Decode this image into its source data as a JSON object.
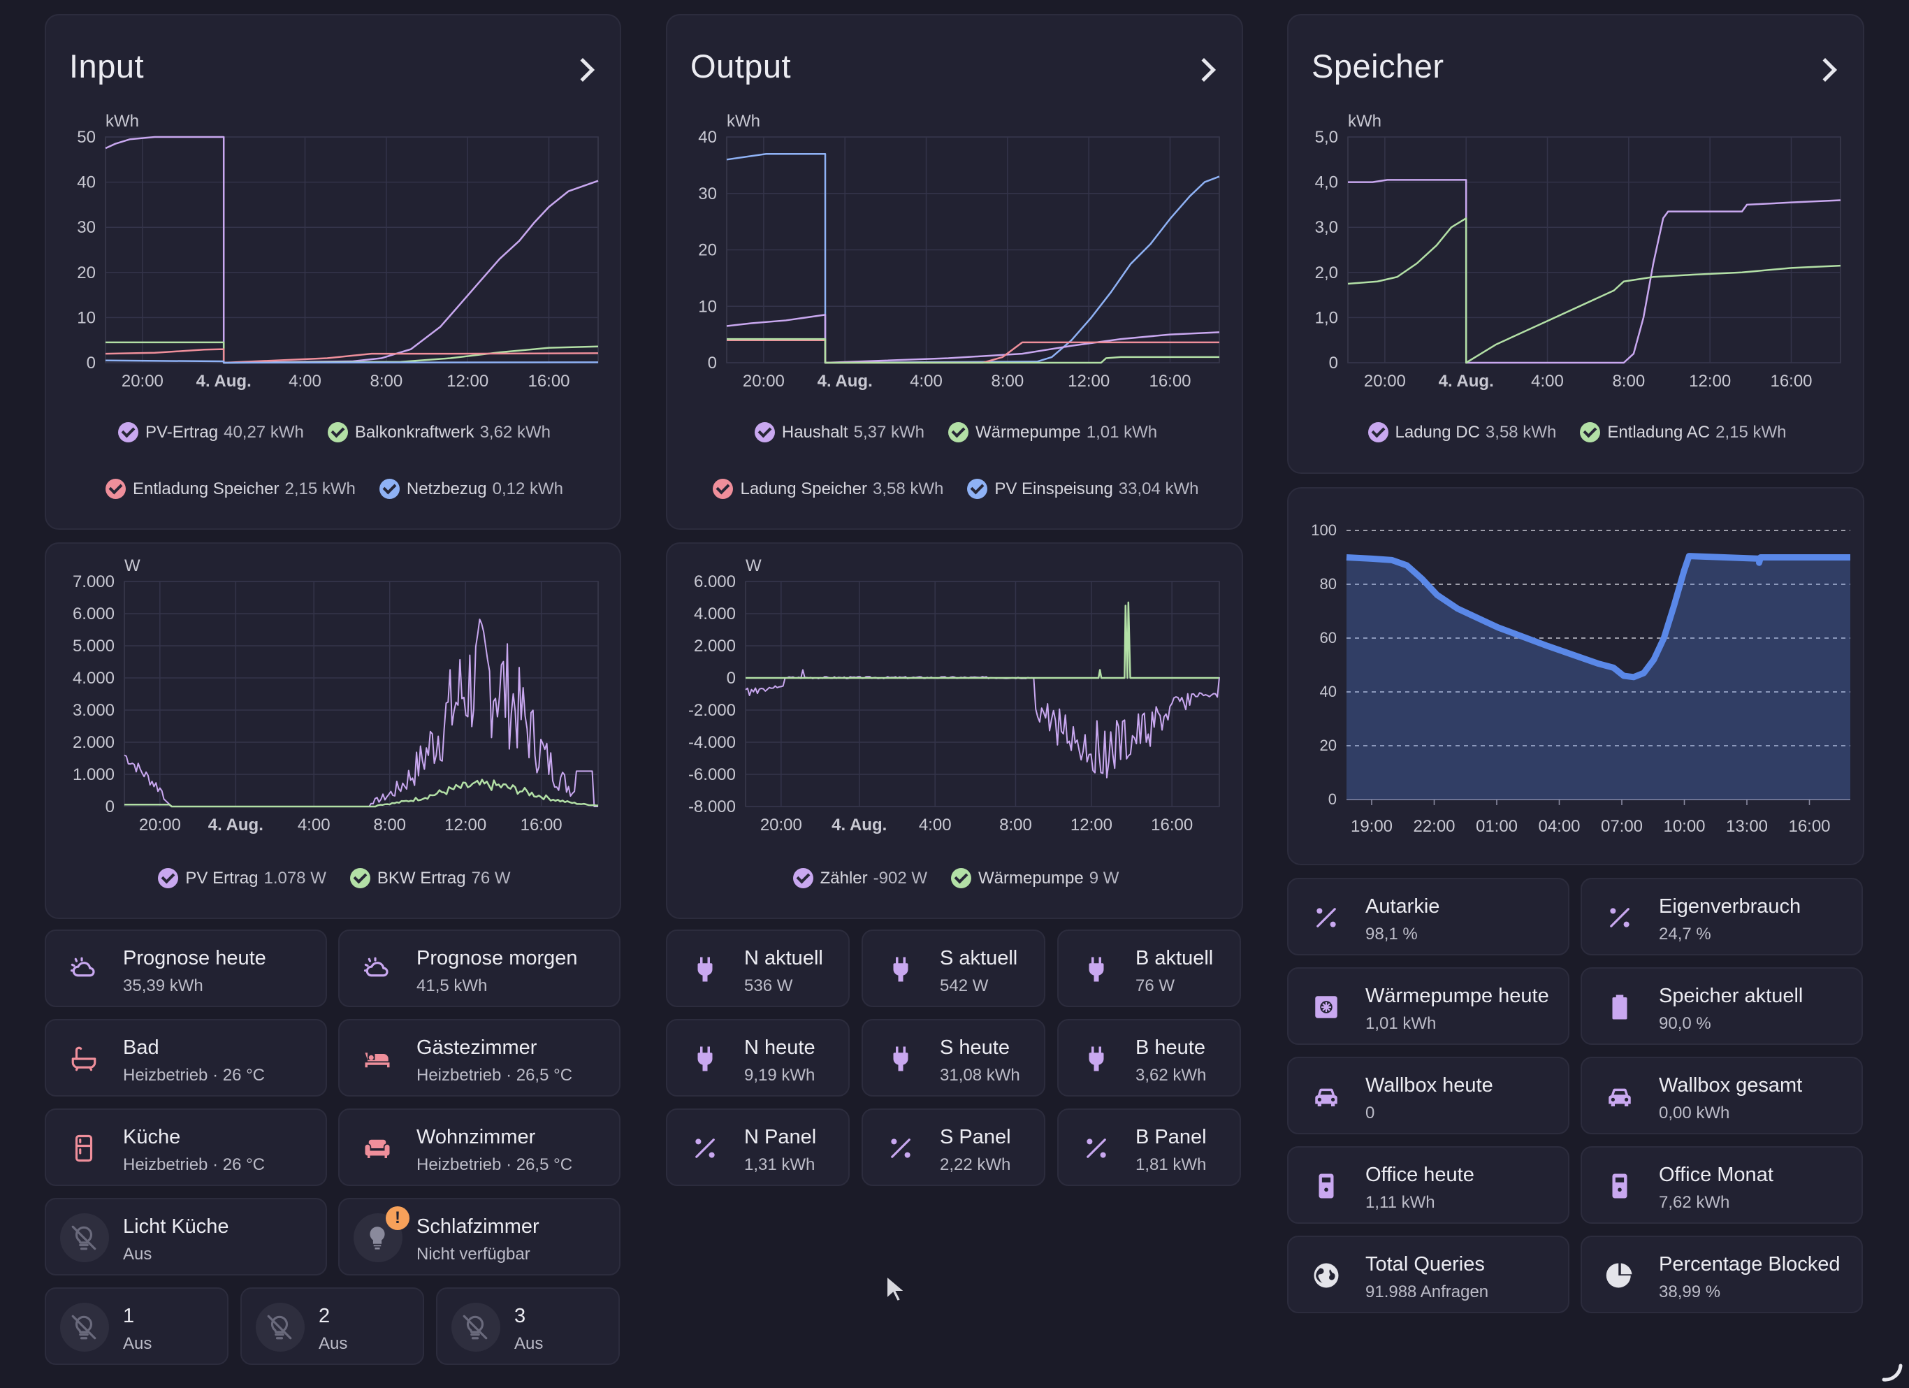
{
  "colors": {
    "purple": "#c9a8f0",
    "green": "#b3e0a6",
    "red": "#ef8f9b",
    "blue": "#8fb2f5",
    "bright_blue": "#5a88e8"
  },
  "input": {
    "title": "Input",
    "energy_chart": {
      "unit": "kWh",
      "ticks_y": [
        "50",
        "40",
        "30",
        "20",
        "10",
        "0"
      ],
      "ticks_x": [
        "20:00",
        "4. Aug.",
        "4:00",
        "8:00",
        "12:00",
        "16:00"
      ],
      "legend": [
        {
          "label": "PV-Ertrag",
          "value": "40,27 kWh",
          "color": "#c9a8f0"
        },
        {
          "label": "Balkonkraftwerk",
          "value": "3,62 kWh",
          "color": "#b3e0a6"
        },
        {
          "label": "Entladung Speicher",
          "value": "2,15 kWh",
          "color": "#ef8f9b"
        },
        {
          "label": "Netzbezug",
          "value": "0,12 kWh",
          "color": "#8fb2f5"
        }
      ]
    },
    "power_chart": {
      "unit": "W",
      "ticks_y": [
        "7.000",
        "6.000",
        "5.000",
        "4.000",
        "3.000",
        "2.000",
        "1.000",
        "0"
      ],
      "ticks_x": [
        "20:00",
        "4. Aug.",
        "4:00",
        "8:00",
        "12:00",
        "16:00"
      ],
      "legend": [
        {
          "label": "PV Ertrag",
          "value": "1.078 W",
          "color": "#c9a8f0"
        },
        {
          "label": "BKW Ertrag",
          "value": "76 W",
          "color": "#b3e0a6"
        }
      ]
    }
  },
  "output": {
    "title": "Output",
    "energy_chart": {
      "unit": "kWh",
      "ticks_y": [
        "40",
        "30",
        "20",
        "10",
        "0"
      ],
      "ticks_x": [
        "20:00",
        "4. Aug.",
        "4:00",
        "8:00",
        "12:00",
        "16:00"
      ],
      "legend": [
        {
          "label": "Haushalt",
          "value": "5,37 kWh",
          "color": "#c9a8f0"
        },
        {
          "label": "Wärmepumpe",
          "value": "1,01 kWh",
          "color": "#b3e0a6"
        },
        {
          "label": "Ladung Speicher",
          "value": "3,58 kWh",
          "color": "#ef8f9b"
        },
        {
          "label": "PV Einspeisung",
          "value": "33,04 kWh",
          "color": "#8fb2f5"
        }
      ]
    },
    "power_chart": {
      "unit": "W",
      "ticks_y": [
        "6.000",
        "4.000",
        "2.000",
        "0",
        "-2.000",
        "-4.000",
        "-6.000",
        "-8.000"
      ],
      "ticks_x": [
        "20:00",
        "4. Aug.",
        "4:00",
        "8:00",
        "12:00",
        "16:00"
      ],
      "legend": [
        {
          "label": "Zähler",
          "value": "-902 W",
          "color": "#c9a8f0"
        },
        {
          "label": "Wärmepumpe",
          "value": "9 W",
          "color": "#b3e0a6"
        }
      ]
    }
  },
  "speicher": {
    "title": "Speicher",
    "energy_chart": {
      "unit": "kWh",
      "ticks_y": [
        "5,0",
        "4,0",
        "3,0",
        "2,0",
        "1,0",
        "0"
      ],
      "ticks_x": [
        "20:00",
        "4. Aug.",
        "4:00",
        "8:00",
        "12:00",
        "16:00"
      ],
      "legend": [
        {
          "label": "Ladung DC",
          "value": "3,58 kWh",
          "color": "#c9a8f0"
        },
        {
          "label": "Entladung AC",
          "value": "2,15 kWh",
          "color": "#b3e0a6"
        }
      ]
    },
    "soc_chart": {
      "ticks_y": [
        "100",
        "80",
        "60",
        "40",
        "20",
        "0"
      ],
      "ticks_x": [
        "19:00",
        "22:00",
        "01:00",
        "04:00",
        "07:00",
        "10:00",
        "13:00",
        "16:00"
      ]
    }
  },
  "input_tiles": [
    {
      "name": "Prognose heute",
      "state": "35,39 kWh",
      "icon": "weather-partly-cloudy-icon"
    },
    {
      "name": "Prognose morgen",
      "state": "41,5 kWh",
      "icon": "weather-partly-cloudy-icon"
    },
    {
      "name": "Bad",
      "state": "Heizbetrieb · 26 °C",
      "icon": "bathtub-icon"
    },
    {
      "name": "Gästezimmer",
      "state": "Heizbetrieb · 26,5 °C",
      "icon": "bed-icon"
    },
    {
      "name": "Küche",
      "state": "Heizbetrieb · 26 °C",
      "icon": "fridge-icon"
    },
    {
      "name": "Wohnzimmer",
      "state": "Heizbetrieb · 26,5 °C",
      "icon": "sofa-icon"
    },
    {
      "name": "Licht Küche",
      "state": "Aus",
      "icon": "lightbulb-off-icon"
    },
    {
      "name": "Schlafzimmer",
      "state": "Nicht verfügbar",
      "icon": "lightbulb-icon"
    },
    {
      "name": "1",
      "state": "Aus",
      "icon": "lightbulb-off-icon"
    },
    {
      "name": "2",
      "state": "Aus",
      "icon": "lightbulb-off-icon"
    },
    {
      "name": "3",
      "state": "Aus",
      "icon": "lightbulb-off-icon"
    }
  ],
  "output_tiles": [
    {
      "name": "N aktuell",
      "state": "536 W",
      "icon": "power-plug-icon"
    },
    {
      "name": "S aktuell",
      "state": "542 W",
      "icon": "power-plug-icon"
    },
    {
      "name": "B aktuell",
      "state": "76 W",
      "icon": "power-plug-icon"
    },
    {
      "name": "N heute",
      "state": "9,19 kWh",
      "icon": "power-plug-icon"
    },
    {
      "name": "S heute",
      "state": "31,08 kWh",
      "icon": "power-plug-icon"
    },
    {
      "name": "B heute",
      "state": "3,62 kWh",
      "icon": "power-plug-icon"
    },
    {
      "name": "N Panel",
      "state": "1,31 kWh",
      "icon": "percent-icon"
    },
    {
      "name": "S Panel",
      "state": "2,22 kWh",
      "icon": "percent-icon"
    },
    {
      "name": "B Panel",
      "state": "1,81 kWh",
      "icon": "percent-icon"
    }
  ],
  "speicher_tiles": [
    {
      "name": "Autarkie",
      "state": "98,1 %",
      "icon": "percent-icon"
    },
    {
      "name": "Eigenverbrauch",
      "state": "24,7 %",
      "icon": "percent-icon"
    },
    {
      "name": "Wärmepumpe heute",
      "state": "1,01 kWh",
      "icon": "heat-pump-icon"
    },
    {
      "name": "Speicher aktuell",
      "state": "90,0 %",
      "icon": "battery-icon"
    },
    {
      "name": "Wallbox heute",
      "state": "0",
      "icon": "car-icon"
    },
    {
      "name": "Wallbox gesamt",
      "state": "0,00 kWh",
      "icon": "car-icon"
    },
    {
      "name": "Office heute",
      "state": "1,11 kWh",
      "icon": "meter-icon"
    },
    {
      "name": "Office Monat",
      "state": "7,62 kWh",
      "icon": "meter-icon"
    },
    {
      "name": "Total Queries",
      "state": "91.988 Anfragen",
      "icon": "globe-icon"
    },
    {
      "name": "Percentage Blocked",
      "state": "38,99 %",
      "icon": "pie-chart-icon"
    }
  ]
}
